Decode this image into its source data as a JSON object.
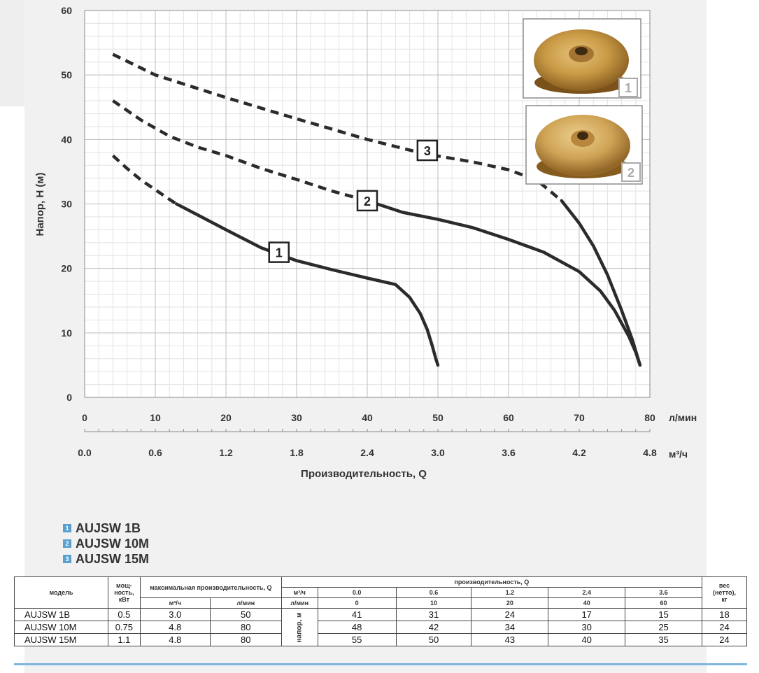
{
  "chart_data": {
    "type": "line",
    "title": "",
    "xlabel": "Производительность, Q",
    "ylabel": "Напор, Н (м)",
    "x_unit_primary": "л/мин",
    "x_unit_secondary": "м³/ч",
    "xlim": [
      0,
      80
    ],
    "ylim": [
      0,
      60
    ],
    "x_ticks_primary": [
      "0",
      "10",
      "20",
      "30",
      "40",
      "50",
      "60",
      "70",
      "80"
    ],
    "x_ticks_secondary": [
      "0.0",
      "0.6",
      "1.2",
      "1.8",
      "2.4",
      "3.0",
      "3.6",
      "4.2",
      "4.8"
    ],
    "y_ticks": [
      "0",
      "10",
      "20",
      "30",
      "40",
      "50",
      "60"
    ],
    "grid": true,
    "series": [
      {
        "name": "1",
        "dashed_x": [
          4,
          6,
          8,
          10,
          12,
          13
        ],
        "dashed_y": [
          37.5,
          35.5,
          33.7,
          32.2,
          30.7,
          30.0
        ],
        "solid_x": [
          13,
          16,
          20,
          25,
          30,
          35,
          40,
          44,
          46,
          47.5,
          48.5,
          49.2,
          49.7,
          50
        ],
        "solid_y": [
          30.0,
          28.3,
          26.0,
          23.2,
          21.2,
          19.8,
          18.5,
          17.5,
          15.5,
          13.0,
          10.5,
          8.0,
          6.0,
          5.0
        ]
      },
      {
        "name": "2",
        "dashed_x": [
          4,
          8,
          12,
          16,
          20,
          25,
          30,
          35,
          40
        ],
        "dashed_y": [
          46.0,
          43.0,
          40.5,
          38.8,
          37.5,
          35.5,
          33.8,
          32.0,
          30.5
        ],
        "solid_x": [
          40,
          45,
          50,
          55,
          60,
          65,
          70,
          73,
          75,
          77,
          78,
          78.6
        ],
        "solid_y": [
          30.5,
          28.7,
          27.6,
          26.3,
          24.5,
          22.5,
          19.5,
          16.5,
          13.5,
          9.5,
          7.0,
          5.0
        ]
      },
      {
        "name": "3",
        "dashed_x": [
          4,
          10,
          20,
          30,
          40,
          48,
          55,
          60,
          64,
          67.5
        ],
        "dashed_y": [
          53.2,
          50.0,
          46.5,
          43.2,
          40.0,
          37.8,
          36.5,
          35.3,
          33.7,
          30.5
        ],
        "solid_x": [
          67.5,
          70,
          72,
          74,
          76,
          77.5,
          78.6
        ],
        "solid_y": [
          30.5,
          27.0,
          23.5,
          19.0,
          13.5,
          9.0,
          5.0
        ]
      }
    ],
    "curve_labels": [
      {
        "text": "1",
        "x": 27.5,
        "y": 22.5
      },
      {
        "text": "2",
        "x": 40,
        "y": 30.5
      },
      {
        "text": "3",
        "x": 48.5,
        "y": 38.3
      }
    ]
  },
  "thumbnails": [
    {
      "tag": "1",
      "icon": "brass-impeller-image"
    },
    {
      "tag": "2",
      "icon": "brass-impeller-image"
    }
  ],
  "legend": [
    {
      "num": "1",
      "label": "AUJSW 1B"
    },
    {
      "num": "2",
      "label": "AUJSW 10M"
    },
    {
      "num": "3",
      "label": "AUJSW 15M"
    }
  ],
  "table": {
    "h_model": "модель",
    "h_power_1": "мощ-",
    "h_power_2": "ность,",
    "h_power_3": "кВт",
    "h_maxflow": "максимальная производительность, Q",
    "h_maxflow_m3": "м³/ч",
    "h_maxflow_lpm": "л/мин",
    "h_flow": "производительность, Q",
    "h_row_m3": "м³/ч",
    "h_row_lpm": "л/мин",
    "flow_m3": [
      "0.0",
      "0.6",
      "1.2",
      "2.4",
      "3.6"
    ],
    "flow_lpm": [
      "0",
      "10",
      "20",
      "40",
      "60"
    ],
    "h_head": "напор, м",
    "h_weight_1": "вес",
    "h_weight_2": "(нетто),",
    "h_weight_3": "кг",
    "rows": [
      {
        "model": "AUJSW 1B",
        "power": "0.5",
        "q_m3": "3.0",
        "q_lpm": "50",
        "heads": [
          "41",
          "31",
          "24",
          "17",
          "15"
        ],
        "weight": "18"
      },
      {
        "model": "AUJSW 10M",
        "power": "0.75",
        "q_m3": "4.8",
        "q_lpm": "80",
        "heads": [
          "48",
          "42",
          "34",
          "30",
          "25"
        ],
        "weight": "24"
      },
      {
        "model": "AUJSW 15M",
        "power": "1.1",
        "q_m3": "4.8",
        "q_lpm": "80",
        "heads": [
          "55",
          "50",
          "43",
          "40",
          "35"
        ],
        "weight": "24"
      }
    ]
  }
}
